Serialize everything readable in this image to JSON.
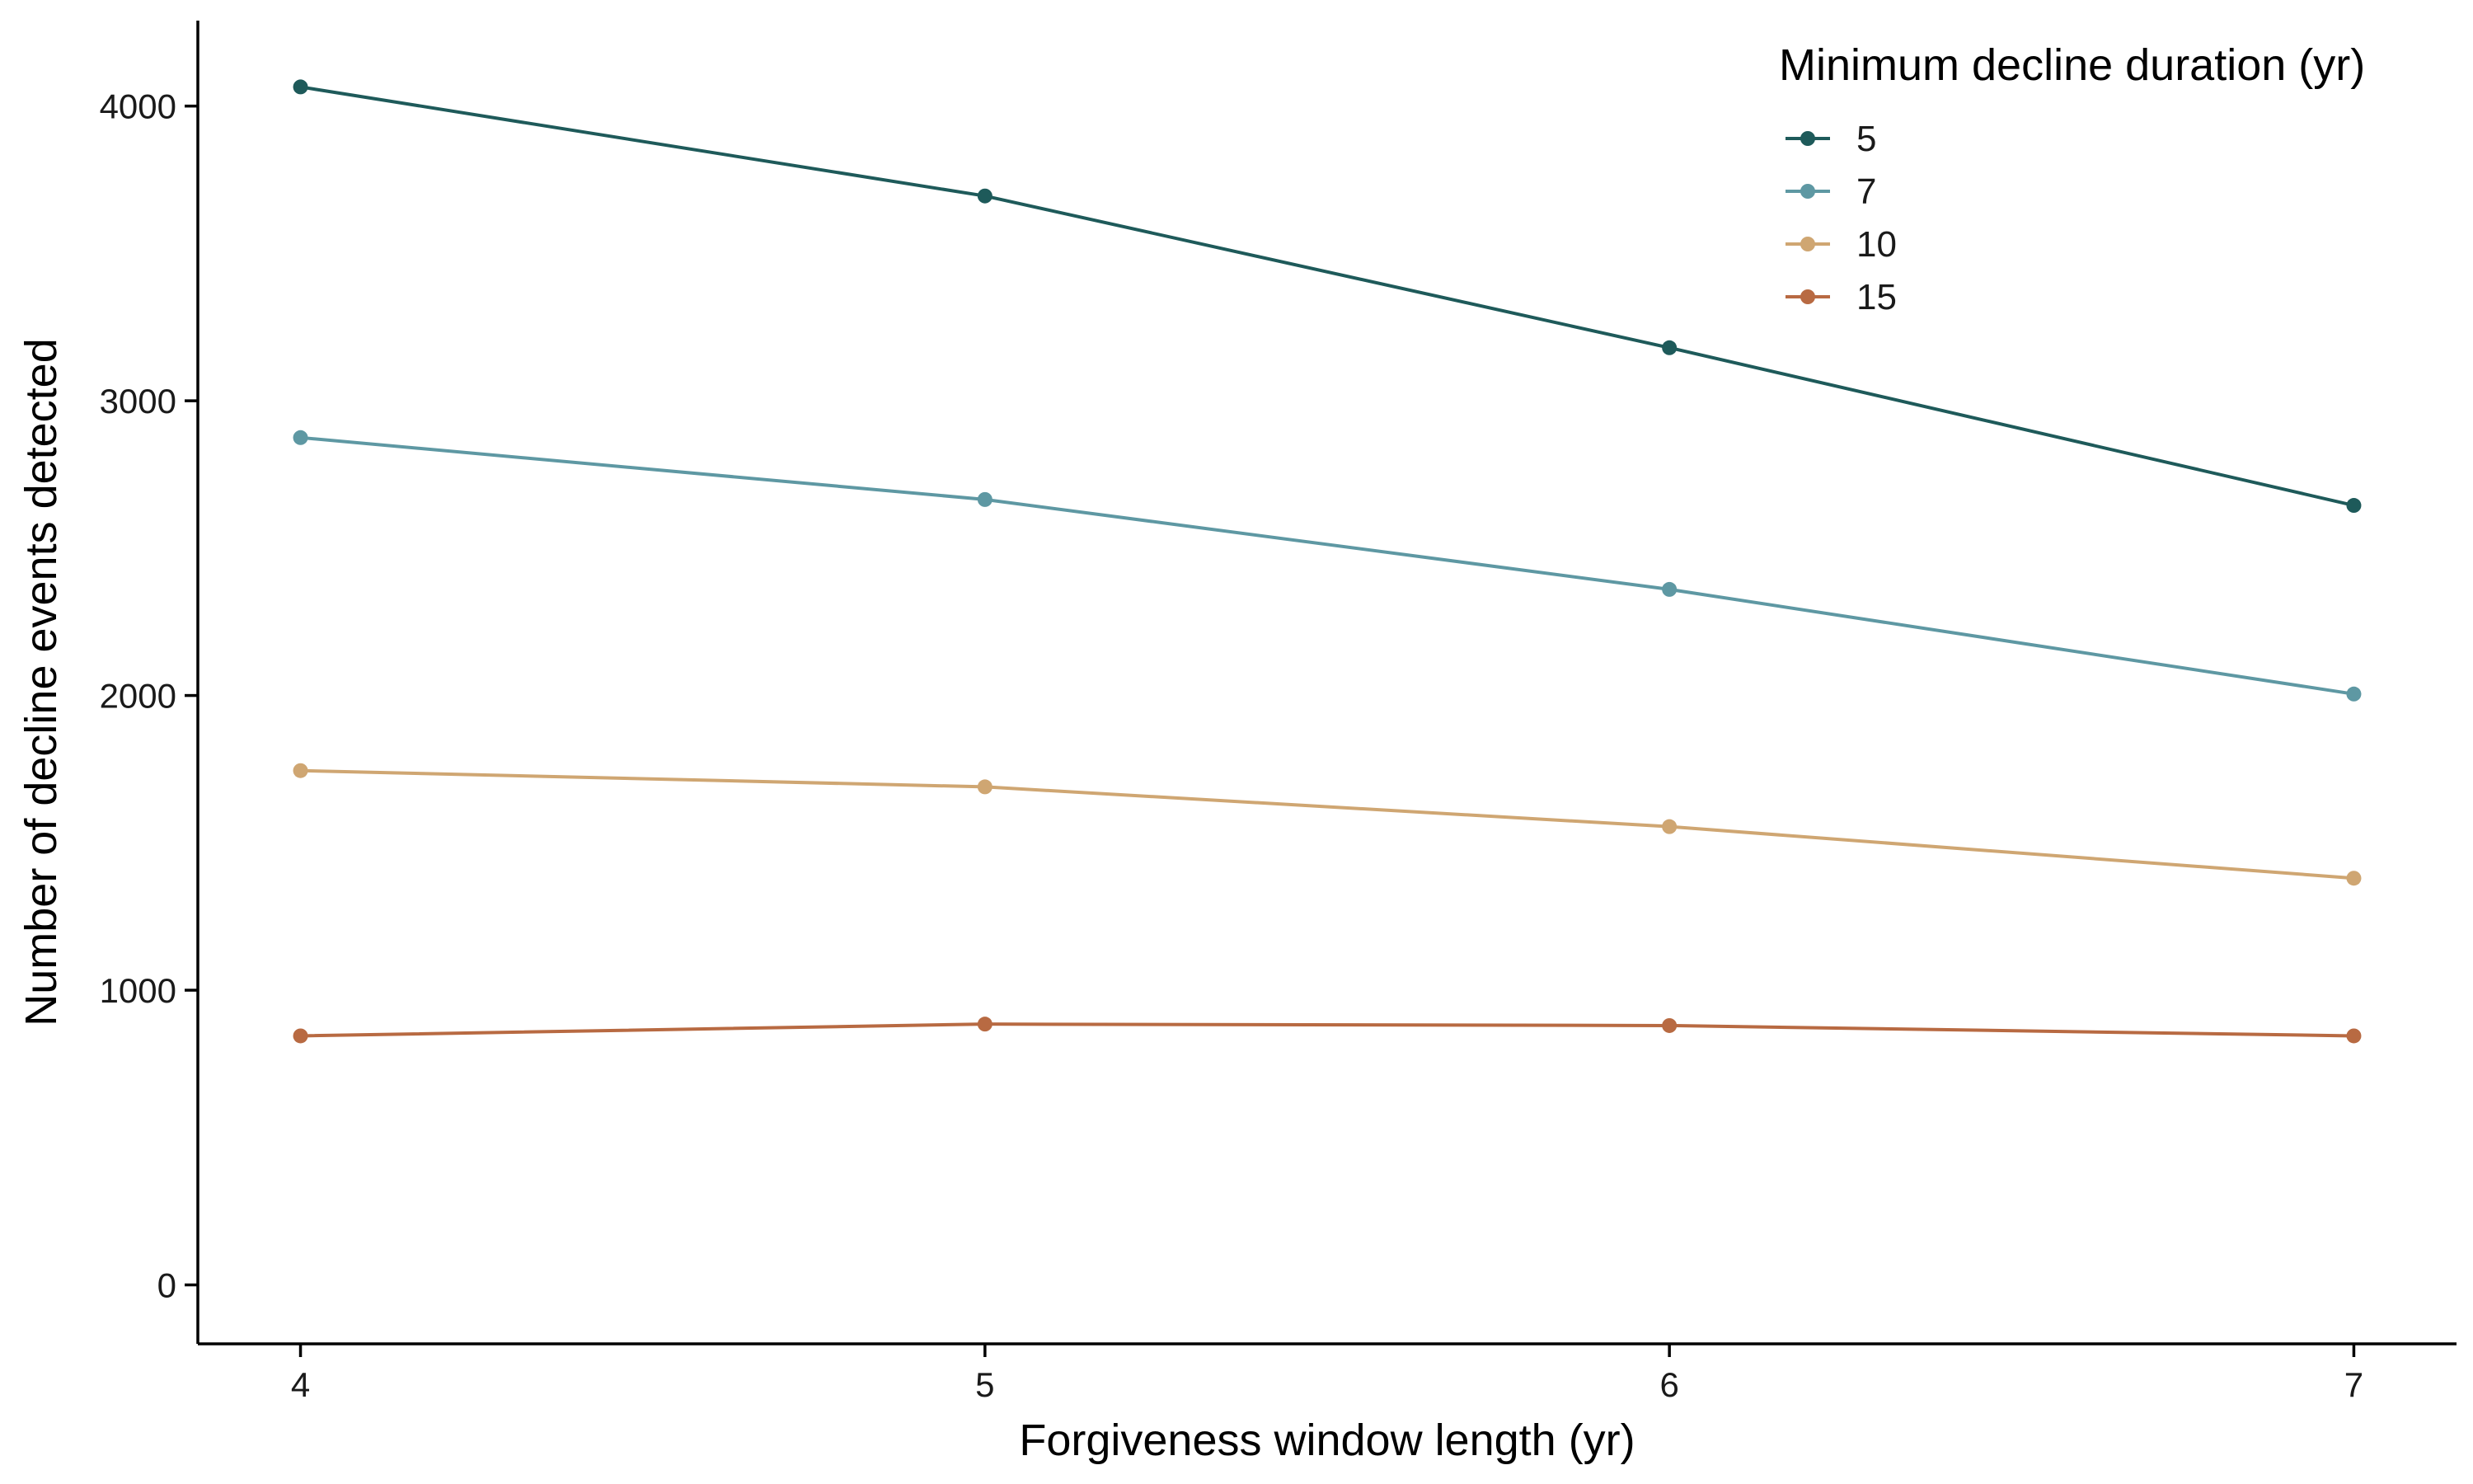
{
  "chart_data": {
    "type": "line",
    "title": "",
    "xlabel": "Forgiveness window length (yr)",
    "ylabel": "Number of decline events detected",
    "x": [
      4,
      5,
      6,
      7
    ],
    "x_ticks": [
      "4",
      "5",
      "6",
      "7"
    ],
    "y_ticks": [
      "0",
      "1000",
      "2000",
      "3000",
      "4000"
    ],
    "xlim": [
      3.85,
      7.15
    ],
    "ylim": [
      -200,
      4290
    ],
    "grid": false,
    "legend": {
      "title": "Minimum decline duration (yr)",
      "placement": "top-right"
    },
    "series": [
      {
        "name": "5",
        "color": "#1e5a5a",
        "values": [
          4065,
          3695,
          3180,
          2645
        ]
      },
      {
        "name": "7",
        "color": "#5e98a3",
        "values": [
          2875,
          2665,
          2360,
          2005
        ]
      },
      {
        "name": "10",
        "color": "#cfa672",
        "values": [
          1745,
          1690,
          1555,
          1380
        ]
      },
      {
        "name": "15",
        "color": "#b86a42",
        "values": [
          845,
          885,
          880,
          845
        ]
      }
    ]
  }
}
